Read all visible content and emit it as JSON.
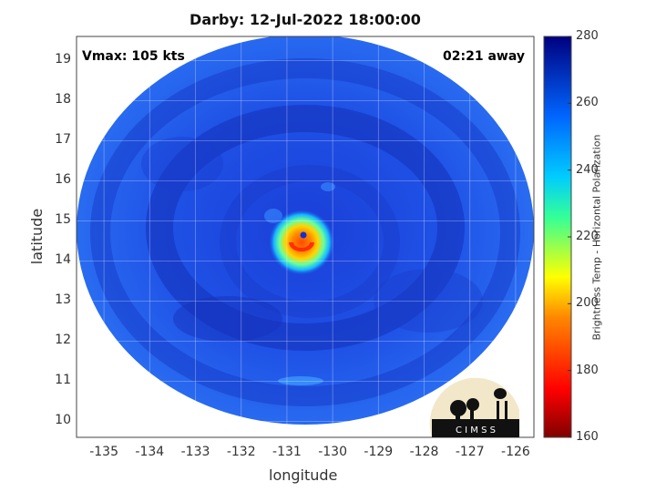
{
  "title": "Darby: 12-Jul-2022 18:00:00",
  "vmax_label": "Vmax: 105 kts",
  "time_label": "02:21 away",
  "xlabel": "longitude",
  "ylabel": "latitude",
  "colorbar_label": "Brightness Temp - Horizontal Polarization",
  "logo_text": "C I M S S",
  "x_ticks": [
    "-135",
    "-134",
    "-133",
    "-132",
    "-131",
    "-130",
    "-129",
    "-128",
    "-127",
    "-126"
  ],
  "y_ticks": [
    "10",
    "11",
    "12",
    "13",
    "14",
    "15",
    "16",
    "17",
    "18",
    "19"
  ],
  "colorbar_ticks": [
    "160",
    "180",
    "200",
    "220",
    "240",
    "260",
    "280"
  ],
  "map_data": {
    "type": "heatmap",
    "xlim": [
      -135.6,
      -125.6
    ],
    "ylim": [
      9.6,
      19.6
    ],
    "colorbar_range": [
      160,
      280
    ],
    "colormap": "jet",
    "background_value": 262,
    "storm_center": {
      "lon": -130.6,
      "lat": 14.5
    },
    "eye_min_value": 175,
    "grid": true
  }
}
